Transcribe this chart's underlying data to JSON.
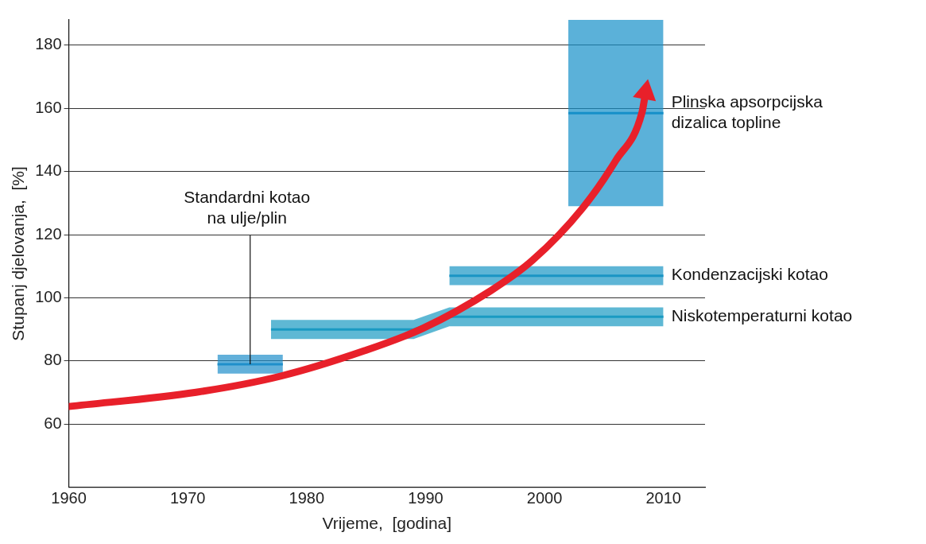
{
  "chart_data": {
    "type": "line",
    "xlabel": "Vrijeme,  [godina]",
    "ylabel": "Stupanj djelovanja,  [%]",
    "xlim": [
      1960,
      2013.5
    ],
    "xticks": [
      1960,
      1970,
      1980,
      1990,
      2000,
      2010
    ],
    "ylim": [
      40,
      188
    ],
    "yticks": [
      60,
      80,
      100,
      120,
      140,
      160,
      180
    ],
    "grid": "y",
    "legend": false,
    "series": [
      {
        "name": "Standardni kotao na ulje/plin",
        "color": "#1f8fcb",
        "x": [
          1972.5,
          1978
        ],
        "values": [
          79,
          79
        ],
        "lower": [
          76,
          76
        ],
        "upper": [
          82,
          82
        ]
      },
      {
        "name": "Niskotemperaturni kotao",
        "color": "#1a9ac2",
        "x": [
          1977,
          1989,
          1992,
          2010
        ],
        "values": [
          90,
          90,
          94,
          94
        ],
        "lower": [
          87,
          87,
          91,
          91
        ],
        "upper": [
          93,
          93,
          97,
          97
        ]
      },
      {
        "name": "Kondenzacijski kotao",
        "color": "#1a95c4",
        "x": [
          1992,
          2010
        ],
        "values": [
          107,
          107
        ],
        "lower": [
          104,
          104
        ],
        "upper": [
          110,
          110
        ]
      },
      {
        "name": "Plinska apsorpcijska dizalica topline",
        "color": "#1690c9",
        "x": [
          2002,
          2010
        ],
        "values": [
          158.5,
          158.5
        ],
        "lower": [
          129,
          129
        ],
        "upper": [
          188,
          188
        ]
      },
      {
        "color": "#e8202a",
        "x": [
          1960,
          1970.7,
          1977.8,
          1984.9,
          1989.8,
          1995.5,
          1999,
          2003.2,
          2006,
          2008.2,
          2008.5
        ],
        "values": [
          65.6,
          70.1,
          75.2,
          83.3,
          90.4,
          102.3,
          111.9,
          128.4,
          143.5,
          158.7,
          165
        ]
      }
    ]
  }
}
